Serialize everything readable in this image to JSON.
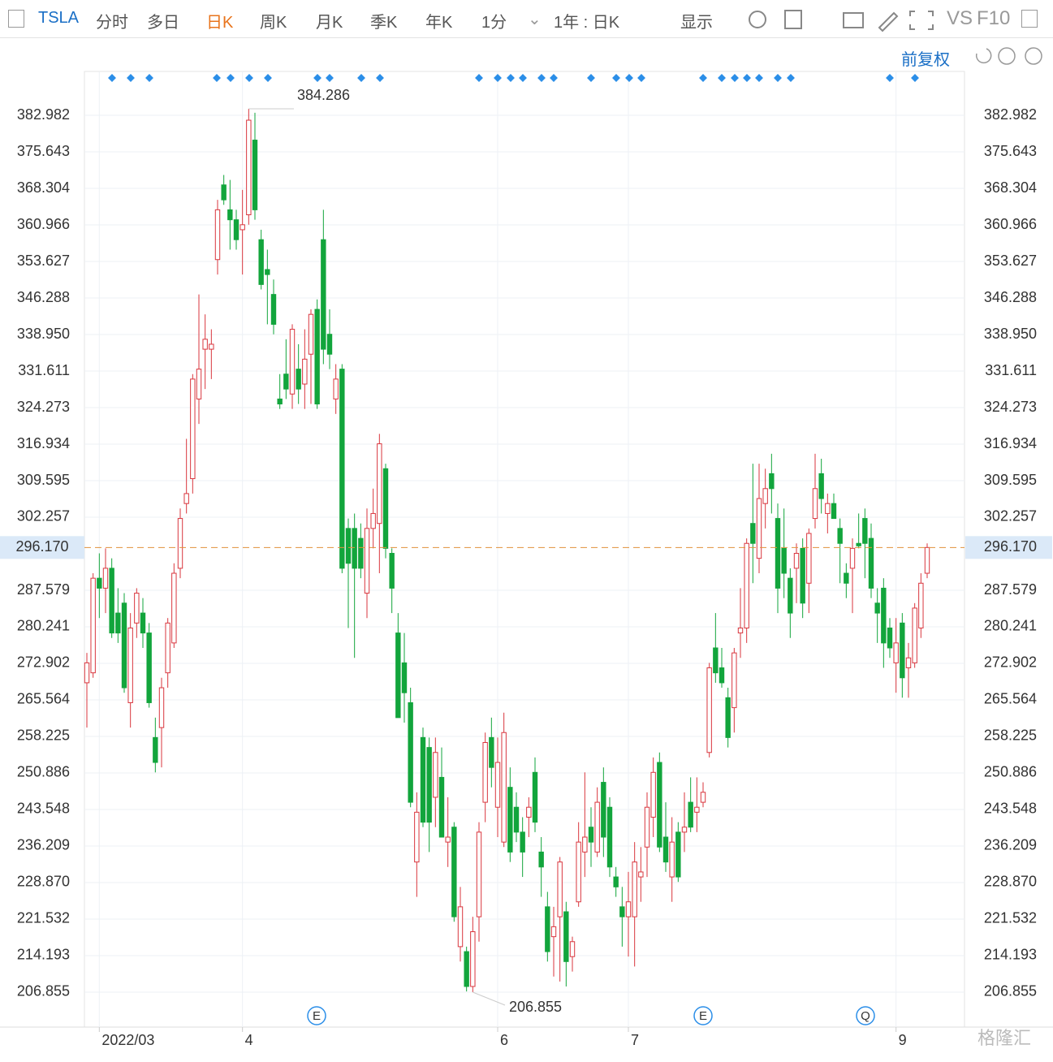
{
  "toolbar": {
    "symbol": "TSLA",
    "tabs": [
      "分时",
      "多日",
      "日K",
      "周K",
      "月K",
      "季K",
      "年K"
    ],
    "interval": "1分",
    "range": "1年 : 日K",
    "display": "显示",
    "vs": "VS",
    "f10": "F10",
    "adjust": "前复权",
    "watermark": "格隆汇"
  },
  "chart_data": {
    "type": "candlestick",
    "categories": [
      null,
      null,
      "2022/03",
      null,
      null,
      null,
      null,
      null,
      null,
      null,
      null,
      null,
      null,
      null,
      null,
      null,
      null,
      null,
      null,
      null,
      null,
      null,
      null,
      null,
      null,
      "4",
      null,
      null,
      null,
      null,
      null,
      null,
      null,
      null,
      null,
      null,
      null,
      null,
      null,
      null,
      null,
      null,
      null,
      null,
      null,
      null,
      null,
      null,
      null,
      null,
      null,
      null,
      null,
      null,
      null,
      null,
      null,
      null,
      null,
      null,
      null,
      null,
      null,
      null,
      null,
      null,
      "6",
      null,
      null,
      null,
      null,
      null,
      null,
      null,
      null,
      null,
      null,
      null,
      null,
      null,
      null,
      null,
      null,
      null,
      null,
      null,
      null,
      "7",
      null,
      null,
      null,
      null,
      null,
      null,
      null,
      null,
      null,
      null,
      null,
      null,
      null,
      null,
      null,
      null,
      null,
      null,
      null,
      null,
      null,
      null,
      null,
      null,
      null,
      null,
      null,
      null,
      null,
      null,
      null,
      null,
      null,
      null,
      null,
      null,
      null,
      null,
      null,
      null,
      null,
      null,
      "9",
      null,
      null,
      null,
      null,
      null
    ],
    "open": [
      269,
      271,
      290,
      288,
      292,
      283,
      285,
      265,
      281,
      283,
      279,
      258,
      260,
      271,
      277,
      292,
      305,
      310,
      326,
      336,
      336,
      354,
      369,
      364,
      362,
      360,
      363,
      378,
      358,
      352,
      347,
      326,
      331,
      327,
      332,
      329,
      335,
      344,
      358,
      339,
      326,
      332,
      300,
      300,
      298,
      287,
      300,
      301,
      312,
      295,
      279,
      273,
      265,
      233,
      258,
      256,
      246,
      250,
      237,
      240,
      216,
      215,
      208,
      222,
      245,
      258,
      244,
      237,
      248,
      244,
      239,
      242,
      251,
      235,
      224,
      218,
      222,
      223,
      214,
      225,
      235,
      240,
      235,
      249,
      244,
      230,
      224,
      222,
      222,
      230,
      236,
      242,
      253,
      238,
      230,
      239,
      239,
      245,
      243,
      245,
      255,
      276,
      272,
      266,
      264,
      279,
      280,
      301,
      294,
      305,
      311,
      302,
      296,
      290,
      292,
      296,
      289,
      302,
      311,
      303,
      305,
      300,
      291,
      292,
      297,
      302,
      298,
      285,
      288,
      280,
      273,
      281,
      272,
      273,
      280,
      291
    ],
    "high": [
      275,
      291,
      295,
      296,
      294,
      288,
      287,
      283,
      288,
      286,
      281,
      262,
      270,
      282,
      293,
      304,
      318,
      331,
      347,
      343,
      340,
      366,
      371,
      370,
      364,
      368,
      384.286,
      383.5,
      360,
      356,
      350,
      331,
      338,
      341,
      337,
      340,
      344,
      346,
      364,
      344,
      333,
      333,
      302,
      303,
      301,
      304,
      308,
      319,
      313,
      296,
      283,
      279,
      268,
      247,
      260,
      258,
      258,
      256,
      246,
      241,
      228,
      216,
      222,
      241,
      259,
      262,
      258,
      263,
      252,
      247,
      242,
      246,
      254,
      238,
      227,
      224,
      234,
      225,
      218,
      241,
      251,
      244,
      248,
      252,
      246,
      232,
      228,
      231,
      237,
      236,
      247,
      254,
      255,
      245,
      242,
      241,
      247,
      250,
      250,
      249,
      273,
      283,
      276,
      268,
      276,
      288,
      298,
      313,
      313,
      312,
      315,
      305,
      304,
      292,
      297,
      298,
      300,
      315,
      314,
      307,
      307,
      302,
      293,
      298,
      303,
      304,
      301,
      288,
      290,
      282,
      282,
      283,
      277,
      285,
      291,
      297
    ],
    "low": [
      260,
      270,
      282,
      283,
      278,
      277,
      267,
      260,
      278,
      276,
      264,
      251,
      252,
      268,
      276,
      290,
      303,
      307,
      321,
      328,
      330,
      351,
      365,
      356,
      356,
      351,
      361,
      362,
      348,
      341,
      339,
      324,
      326,
      324,
      325,
      324,
      325,
      324,
      333,
      332,
      323,
      291,
      280,
      274,
      290,
      282,
      296,
      291,
      294,
      283,
      262,
      261,
      244,
      226,
      240,
      235,
      240,
      238,
      232,
      221,
      213,
      207,
      206.855,
      217,
      241,
      248,
      238,
      236,
      233,
      237,
      230,
      238,
      239,
      226,
      213,
      210,
      209,
      208,
      211,
      224,
      230,
      232,
      234,
      234,
      230,
      226,
      216,
      214,
      212,
      225,
      230,
      238,
      235,
      231,
      225,
      229,
      235,
      239,
      239,
      244,
      254,
      269,
      268,
      256,
      259,
      274,
      277,
      289,
      291,
      300,
      303,
      283,
      286,
      278,
      285,
      282,
      283,
      300,
      303,
      299,
      302,
      289,
      286,
      283,
      296,
      290,
      286,
      277,
      272,
      274,
      267,
      266,
      266,
      272,
      278,
      290
    ],
    "close": [
      273,
      290,
      288,
      292,
      279,
      279,
      268,
      280,
      287,
      279,
      265,
      253,
      268,
      281,
      291,
      302,
      307,
      330,
      332,
      338,
      337,
      364,
      366,
      362,
      358,
      361,
      382,
      364,
      349,
      351,
      341,
      325,
      328,
      340,
      328,
      334,
      343,
      325,
      336,
      335,
      330,
      292,
      293,
      292,
      292,
      300,
      303,
      317,
      296,
      288,
      262,
      267,
      245,
      243,
      241,
      241,
      255,
      238,
      238,
      222,
      224,
      208,
      219,
      239,
      257,
      252,
      253,
      259,
      235,
      239,
      235,
      244,
      241,
      232,
      215,
      220,
      233,
      213,
      217,
      237,
      238,
      237,
      245,
      238,
      232,
      228,
      222,
      225,
      233,
      231,
      244,
      251,
      236,
      233,
      237,
      230,
      240,
      240,
      244,
      247,
      272,
      271,
      269,
      258,
      275,
      280,
      297,
      297,
      306,
      308,
      308,
      288,
      291,
      283,
      295,
      285,
      299,
      308,
      306,
      305,
      302,
      297,
      289,
      296,
      296.5,
      297,
      288,
      283,
      277,
      276,
      277,
      270,
      274,
      284,
      289,
      296.17
    ],
    "up_color": "#d9363e",
    "down_color": "#12a53c",
    "ylim": [
      199.84,
      391.79
    ],
    "yticks": [
      206.855,
      214.193,
      221.532,
      {
        "value": 228.87,
        "label": "228.870"
      },
      236.209,
      243.548,
      250.886,
      258.225,
      265.564,
      272.902,
      280.241,
      287.579,
      302.257,
      309.595,
      316.934,
      324.273,
      331.611,
      {
        "value": 338.95,
        "label": "338.950"
      },
      346.288,
      353.627,
      360.966,
      368.304,
      375.643,
      382.982
    ],
    "last_price": {
      "value": 296.17,
      "label": "296.170"
    },
    "max_label": 384.286,
    "min_label": 206.855,
    "event_markers": [
      "E",
      "E",
      "Q"
    ],
    "grid": true
  }
}
